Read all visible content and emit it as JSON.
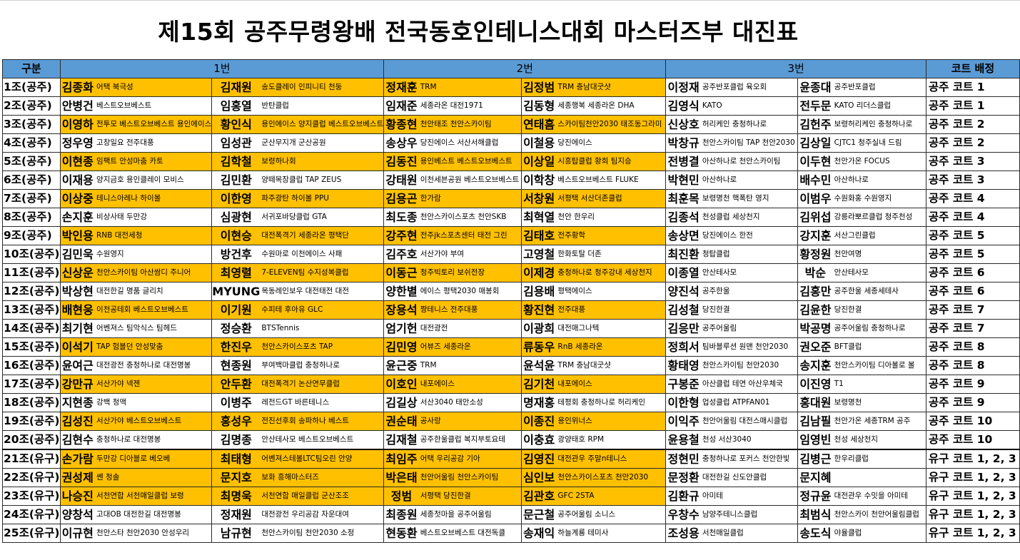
{
  "title": "제15회 공주무령왕배 전국동호인테니스대회 마스터즈부 대진표",
  "header": {
    "group": "구분",
    "slot1": "1번",
    "slot2": "2번",
    "slot3": "3번",
    "court": "코트 배정"
  },
  "colors": {
    "highlight": "#ffc000",
    "header_bg": "#5b9bd5"
  },
  "rows": [
    {
      "group": "1조(공주)",
      "hl": [
        true,
        true,
        true,
        true,
        false,
        false
      ],
      "p": [
        [
          "김종화",
          "어택 북극성"
        ],
        [
          "김재원",
          "송도클레이 인피니티 천둥"
        ],
        [
          "정재훈",
          "TRM"
        ],
        [
          "김정범",
          "TRM 충남대굿샷"
        ],
        [
          "이정재",
          "공주반포클럽 육오회"
        ],
        [
          "윤종대",
          "공주반포클럽"
        ]
      ],
      "court": "공주 코트 1"
    },
    {
      "group": "2조(공주)",
      "hl": [
        false,
        false,
        false,
        false,
        false,
        false
      ],
      "p": [
        [
          "안병건",
          "베스트오브베스트"
        ],
        [
          "임홍열",
          "반탄클럽"
        ],
        [
          "임재준",
          "세종라온 대전1971"
        ],
        [
          "김동형",
          "세종행복 세종라온 DHA"
        ],
        [
          "김영식",
          "KATO"
        ],
        [
          "전두문",
          "KATO 리더스클럽"
        ]
      ],
      "court": "공주 코트 1"
    },
    {
      "group": "3조(공주)",
      "hl": [
        true,
        true,
        true,
        true,
        false,
        false
      ],
      "p": [
        [
          "이영하",
          "전투모 베스트오브베스트 용인에이스"
        ],
        [
          "황인식",
          "용인에이스 양지클럽 베스트오브베스트"
        ],
        [
          "황종현",
          "천안태조 천안스카이팀"
        ],
        [
          "연태흠",
          "스카이팀천안2030 태조동그라미"
        ],
        [
          "신상호",
          "허리케인 충청하나로"
        ],
        [
          "김헌주",
          "보령허리케인 충청하나로"
        ]
      ],
      "court": "공주 코트 2"
    },
    {
      "group": "4조(공주)",
      "hl": [
        false,
        false,
        false,
        false,
        false,
        false
      ],
      "p": [
        [
          "정우영",
          "고창일요 전주대풍"
        ],
        [
          "임성관",
          "군산무지개 군산공원"
        ],
        [
          "송상우",
          "당진에이스 서산서해클럽"
        ],
        [
          "이철용",
          "당진에이스"
        ],
        [
          "박창규",
          "천안스카이팀 TAP 천안2030"
        ],
        [
          "김상일",
          "CJTC1 청주실내 드림"
        ]
      ],
      "court": "공주 코트 2"
    },
    {
      "group": "5조(공주)",
      "hl": [
        true,
        true,
        true,
        true,
        false,
        false
      ],
      "p": [
        [
          "이현종",
          "임팩트 안성마춤 카토"
        ],
        [
          "김학철",
          "보령하나회"
        ],
        [
          "김동진",
          "용인베스트 베스트오브베스트"
        ],
        [
          "이상일",
          "시흥탑클럽 황희 팀지승"
        ],
        [
          "전병결",
          "아산하나로 천안스카이팀"
        ],
        [
          "이두현",
          "천안가온 FOCUS"
        ]
      ],
      "court": "공주 코트 3"
    },
    {
      "group": "6조(공주)",
      "hl": [
        false,
        false,
        false,
        false,
        false,
        false
      ],
      "p": [
        [
          "이재용",
          "양지금호 용인클레이 모비스"
        ],
        [
          "김민환",
          "양떼목장클럽 TAP ZEUS"
        ],
        [
          "강태원",
          "이천세븐공원 베스트오브베스트"
        ],
        [
          "이학창",
          "베스트오브베스트 FLUKE"
        ],
        [
          "박현민",
          "아산하나로"
        ],
        [
          "배수민",
          "아산하나로"
        ]
      ],
      "court": "공주 코트 3"
    },
    {
      "group": "7조(공주)",
      "hl": [
        true,
        true,
        true,
        true,
        false,
        false
      ],
      "p": [
        [
          "이상중",
          "테니스아레나 하이볼"
        ],
        [
          "이한영",
          "파주광탄 하이볼 PPU"
        ],
        [
          "김용곤",
          "한가람"
        ],
        [
          "서창원",
          "서평택 서산더존클럽"
        ],
        [
          "최훈목",
          "보령명천 핵폭탄 영지"
        ],
        [
          "이범우",
          "수원화홍 수원영지"
        ]
      ],
      "court": "공주 코트 4"
    },
    {
      "group": "8조(공주)",
      "hl": [
        false,
        false,
        false,
        false,
        false,
        false
      ],
      "p": [
        [
          "손지훈",
          "비상사태 두만강"
        ],
        [
          "심광현",
          "서귀포바당클럽 GTA"
        ],
        [
          "최도종",
          "천안스카이스포츠 천안SKB"
        ],
        [
          "최혁열",
          "천안 한우리"
        ],
        [
          "김종석",
          "천성클럽 세상천지"
        ],
        [
          "김위섭",
          "강릉라뽀르클럽 청주천성"
        ]
      ],
      "court": "공주 코트 4"
    },
    {
      "group": "9조(공주)",
      "hl": [
        true,
        true,
        true,
        true,
        false,
        false
      ],
      "p": [
        [
          "박인용",
          "RNB 대전세청"
        ],
        [
          "이현승",
          "대전폭격기 세종라온 평택단"
        ],
        [
          "강주현",
          "전주jk스포츠센터 태전 그린"
        ],
        [
          "김태호",
          "전주황학"
        ],
        [
          "송상면",
          "당진에이스 한전"
        ],
        [
          "강지훈",
          "서산그린클럽"
        ]
      ],
      "court": "공주 코트 5"
    },
    {
      "group": "10조(공주)",
      "hl": [
        false,
        false,
        false,
        false,
        false,
        false
      ],
      "p": [
        [
          "김민욱",
          "수원영지"
        ],
        [
          "방건후",
          "수원마로 이천에이스 사패"
        ],
        [
          "김주호",
          "서산가야 부여"
        ],
        [
          "고영철",
          "한화토탈 더존"
        ],
        [
          "최진환",
          "청탑클럽"
        ],
        [
          "황정원",
          "천안여명"
        ]
      ],
      "court": "공주 코트 5"
    },
    {
      "group": "11조(공주)",
      "hl": [
        true,
        true,
        true,
        true,
        false,
        false
      ],
      "p": [
        [
          "신상운",
          "천안스카이팀 아산쌈디 주니어"
        ],
        [
          "최영렬",
          "7-ELEVEN팀 수지성복클럽"
        ],
        [
          "이동근",
          "청주빅토리 보쉬전장"
        ],
        [
          "이제경",
          "충청하나로 청주강내 세상천지"
        ],
        [
          "이종열",
          "안산테사모"
        ],
        [
          "박순",
          "안산테사모"
        ]
      ],
      "court": "공주 코트 6"
    },
    {
      "group": "12조(공주)",
      "hl": [
        false,
        false,
        false,
        false,
        false,
        false
      ],
      "p": [
        [
          "박상현",
          "대전한길 명품 글리치"
        ],
        [
          "MYUNG",
          "목동레인보우 대전태전 대전"
        ],
        [
          "양한별",
          "에이스 평택2030 매봉회"
        ],
        [
          "김용배",
          "평택에이스"
        ],
        [
          "양진석",
          "공주한울"
        ],
        [
          "김홍만",
          "공주한울 세종세테사"
        ]
      ],
      "court": "공주 코트 6"
    },
    {
      "group": "13조(공주)",
      "hl": [
        true,
        true,
        true,
        true,
        false,
        false
      ],
      "p": [
        [
          "배현웅",
          "이천공테회 베스트오브베스트"
        ],
        [
          "이기원",
          "수피테 후아유 GLC"
        ],
        [
          "장용석",
          "짱테니스 전주대풍"
        ],
        [
          "황진현",
          "전주대풍"
        ],
        [
          "김성철",
          "당진한결"
        ],
        [
          "김윤한",
          "당진한결"
        ]
      ],
      "court": "공주 코트 7"
    },
    {
      "group": "14조(공주)",
      "hl": [
        false,
        false,
        false,
        false,
        false,
        false
      ],
      "p": [
        [
          "최기현",
          "어벤져스 팀악식스 팀헤드"
        ],
        [
          "정승환",
          "BTSTennis"
        ],
        [
          "엄기헌",
          "대전광전"
        ],
        [
          "이광희",
          "대전매그나텍"
        ],
        [
          "김응만",
          "공주어울림"
        ],
        [
          "박공명",
          "공주어울림 충청하나로"
        ]
      ],
      "court": "공주 코트 7"
    },
    {
      "group": "15조(공주)",
      "hl": [
        true,
        true,
        true,
        true,
        false,
        false
      ],
      "p": [
        [
          "이석기",
          "TAP 험블던 안성맞춤"
        ],
        [
          "한진우",
          "천안스카이스포츠 TAP"
        ],
        [
          "김민영",
          "어뷰즈 세종라온"
        ],
        [
          "류동우",
          "RnB 세종라온"
        ],
        [
          "정희서",
          "팀바블루션 원맨 천안2030"
        ],
        [
          "권오준",
          "BFT클럽"
        ]
      ],
      "court": "공주 코트 8"
    },
    {
      "group": "16조(공주)",
      "hl": [
        false,
        false,
        false,
        false,
        false,
        false
      ],
      "p": [
        [
          "윤여근",
          "대전광전 충청하나로 대전명봉"
        ],
        [
          "현종원",
          "부여백마클럽 충청하나로"
        ],
        [
          "윤근중",
          "TRM"
        ],
        [
          "윤석윤",
          "TRM 충남대굿샷"
        ],
        [
          "황태영",
          "천안스카이팀 천안2030"
        ],
        [
          "송지훈",
          "천안스카이팀 디아볼로 볼"
        ]
      ],
      "court": "공주 코트 8"
    },
    {
      "group": "17조(공주)",
      "hl": [
        true,
        true,
        true,
        true,
        false,
        false
      ],
      "p": [
        [
          "강만규",
          "서산가야 넥젠"
        ],
        [
          "안두환",
          "대전폭격기 논산연무클럽"
        ],
        [
          "이호인",
          "내포에이스"
        ],
        [
          "김기천",
          "내포에이스"
        ],
        [
          "구봉준",
          "아산클럽 테연 아산우체국"
        ],
        [
          "이진영",
          "T1"
        ]
      ],
      "court": "공주 코트 9"
    },
    {
      "group": "18조(공주)",
      "hl": [
        false,
        false,
        false,
        false,
        false,
        false
      ],
      "p": [
        [
          "지현종",
          "강백 청맥"
        ],
        [
          "이병주",
          "레전드GT 바른테니스"
        ],
        [
          "김길상",
          "서산3040 태안소성"
        ],
        [
          "명재홍",
          "테평회 충청하나로 허리케인"
        ],
        [
          "이한형",
          "업성클럽 ATPFAN01"
        ],
        [
          "홍대원",
          "보령명천"
        ]
      ],
      "court": "공주 코트 9"
    },
    {
      "group": "19조(공주)",
      "hl": [
        true,
        true,
        true,
        true,
        false,
        false
      ],
      "p": [
        [
          "김성진",
          "서산가야 베스트오브베스트"
        ],
        [
          "홍성우",
          "전진선후회 송파하나 베스트"
        ],
        [
          "권순태",
          "공사랑"
        ],
        [
          "이종진",
          "용인위너스"
        ],
        [
          "이익주",
          "천안어울림 대전스매시클럽"
        ],
        [
          "김남필",
          "천안가온 세종TRM 공주"
        ]
      ],
      "court": "공주 코트 10"
    },
    {
      "group": "20조(공주)",
      "hl": [
        false,
        false,
        false,
        false,
        false,
        false
      ],
      "p": [
        [
          "김현수",
          "충청하나로 대전명봉"
        ],
        [
          "김명종",
          "안산테사모 베스트오브베스트"
        ],
        [
          "김재철",
          "공주한울클럽 복지부토요테"
        ],
        [
          "이충효",
          "광양태호 RPM"
        ],
        [
          "윤용철",
          "천성 서산3040"
        ],
        [
          "임영빈",
          "천성 세상천지"
        ]
      ],
      "court": "공주 코트 10"
    },
    {
      "group": "21조(유구)",
      "hl": [
        true,
        true,
        true,
        true,
        false,
        false
      ],
      "p": [
        [
          "손가람",
          "두만강 디아블로 베오베"
        ],
        [
          "최태형",
          "어벤져스테볼LTC팀오린 안양"
        ],
        [
          "최임주",
          "어택 우리공감 기아"
        ],
        [
          "김영진",
          "대전관우 주말n테니스"
        ],
        [
          "정현민",
          "충청하나로 포커스 천안한빛"
        ],
        [
          "김병근",
          "한우리클럽"
        ]
      ],
      "court": "유구 코트 1, 2, 3"
    },
    {
      "group": "22조(유구)",
      "hl": [
        true,
        true,
        true,
        true,
        false,
        false
      ],
      "p": [
        [
          "권성제",
          "쎈 청솔"
        ],
        [
          "문지호",
          "보화 흥해마스터즈"
        ],
        [
          "박은태",
          "천안어울림 천안스카이팀"
        ],
        [
          "심인보",
          "천안스카이스포츠 천안2030"
        ],
        [
          "문정환",
          "대전한길 신도안클럽"
        ],
        [
          "문지혜",
          ""
        ]
      ],
      "court": "유구 코트 1, 2, 3"
    },
    {
      "group": "23조(유구)",
      "hl": [
        true,
        true,
        true,
        true,
        false,
        false
      ],
      "p": [
        [
          "나승진",
          "서천연합 서천매일클럽 보령"
        ],
        [
          "최명욱",
          "서천연합 매일클럽 군산조조"
        ],
        [
          "정범",
          "서평택 당진한결"
        ],
        [
          "김관호",
          "GFC 2STA"
        ],
        [
          "김환규",
          "아미테"
        ],
        [
          "정규윤",
          "대전관우 수밋을 아미테"
        ]
      ],
      "court": "유구 코트 1, 2, 3"
    },
    {
      "group": "24조(유구)",
      "hl": [
        false,
        false,
        false,
        false,
        false,
        false
      ],
      "p": [
        [
          "양창석",
          "고대OB 대전한길 대전명봉"
        ],
        [
          "정재원",
          "대전광전 우리공감 자운대여"
        ],
        [
          "최종원",
          "세종첫마을 공주어울림"
        ],
        [
          "문근철",
          "공주어울림 소니스"
        ],
        [
          "우창수",
          "남양주테니스클럽"
        ],
        [
          "최범식",
          "천안스카이 천안어울림클럽"
        ]
      ],
      "court": "유구 코트 1, 2, 3"
    },
    {
      "group": "25조(유구)",
      "hl": [
        false,
        false,
        false,
        false,
        false,
        false
      ],
      "p": [
        [
          "이규현",
          "천안스타 천안2030 안성우리"
        ],
        [
          "남규현",
          "천안스카이팀 천안2030 소정"
        ],
        [
          "현동환",
          "베스트오브베스트 대전독클"
        ],
        [
          "송재익",
          "하늘계룡 테미사"
        ],
        [
          "조성용",
          "서천매일클럽"
        ],
        [
          "송도식",
          "야율클럽"
        ]
      ],
      "court": "유구 코트 1, 2, 3"
    }
  ]
}
